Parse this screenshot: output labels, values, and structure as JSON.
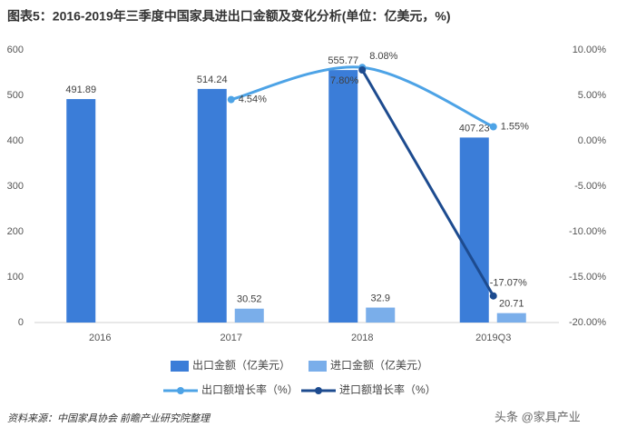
{
  "chart_data": {
    "type": "bar",
    "title": "图表5：2016-2019年三季度中国家具进出口金额及变化分析(单位：亿美元，%)",
    "categories": [
      "2016",
      "2017",
      "2018",
      "2019Q3"
    ],
    "series": [
      {
        "name": "出口金额（亿美元）",
        "type": "bar",
        "color": "#3b7dd8",
        "values": [
          491.89,
          514.24,
          555.77,
          407.23
        ]
      },
      {
        "name": "进口金额（亿美元）",
        "type": "bar",
        "color": "#7aaeea",
        "values": [
          null,
          30.52,
          32.9,
          20.71
        ]
      },
      {
        "name": "出口额增长率（%）",
        "type": "line",
        "axis": "y2",
        "color": "#4da3e6",
        "smooth": true,
        "values": [
          null,
          4.54,
          8.08,
          1.55
        ],
        "value_labels": [
          null,
          "4.54%",
          "8.08%",
          "1.55%"
        ]
      },
      {
        "name": "进口额增长率（%）",
        "type": "line",
        "axis": "y2",
        "color": "#1d4b8f",
        "smooth": false,
        "values": [
          null,
          null,
          7.8,
          -17.07
        ],
        "value_labels": [
          null,
          null,
          "7.80%",
          "-17.07%"
        ]
      }
    ],
    "ylim": [
      0,
      600
    ],
    "yticks": [
      0,
      100,
      200,
      300,
      400,
      500,
      600
    ],
    "y2lim": [
      -20,
      10
    ],
    "y2ticks": [
      {
        "value": -20,
        "label": "-20.00%"
      },
      {
        "value": -15,
        "label": "-15.00%"
      },
      {
        "value": -10,
        "label": "-10.00%"
      },
      {
        "value": -5,
        "label": "-5.00%"
      },
      {
        "value": 0,
        "label": "0.00%"
      },
      {
        "value": 5,
        "label": "5.00%"
      },
      {
        "value": 10,
        "label": "10.00%"
      }
    ],
    "grid": false,
    "source": "资料来源：中国家具协会 前瞻产业研究院整理",
    "watermark": "头条 @家具产业"
  }
}
